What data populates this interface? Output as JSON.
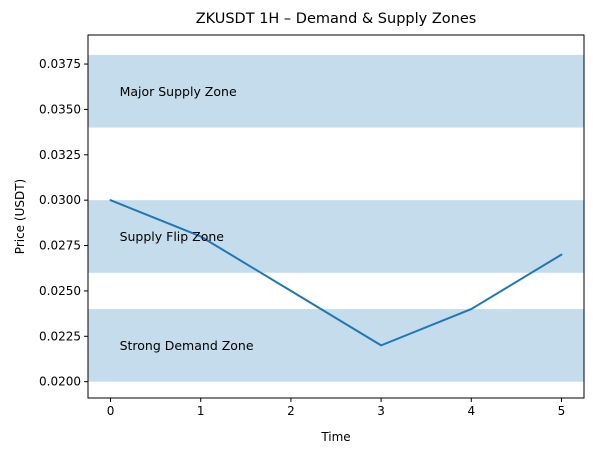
{
  "chart_data": {
    "type": "line",
    "title": "ZKUSDT 1H – Demand & Supply Zones",
    "xlabel": "Time",
    "ylabel": "Price (USDT)",
    "xlim": [
      -0.25,
      5.25
    ],
    "ylim": [
      0.0191,
      0.0391
    ],
    "x_ticks": [
      0,
      1,
      2,
      3,
      4,
      5
    ],
    "x_tick_labels": [
      "0",
      "1",
      "2",
      "3",
      "4",
      "5"
    ],
    "y_ticks": [
      0.02,
      0.0225,
      0.025,
      0.0275,
      0.03,
      0.0325,
      0.035,
      0.0375
    ],
    "y_tick_labels": [
      "0.0200",
      "0.0225",
      "0.0250",
      "0.0275",
      "0.0300",
      "0.0325",
      "0.0350",
      "0.0375"
    ],
    "grid": false,
    "legend": "none",
    "series": [
      {
        "x": [
          0,
          1,
          2,
          3,
          4,
          5
        ],
        "values": [
          0.03,
          0.028,
          0.025,
          0.022,
          0.024,
          0.027
        ],
        "color": "#1f77b4"
      }
    ],
    "zones": [
      {
        "label": "Major Supply Zone",
        "y_low": 0.034,
        "y_high": 0.038,
        "label_x": 0.1,
        "label_y": 0.036
      },
      {
        "label": "Supply Flip Zone",
        "y_low": 0.026,
        "y_high": 0.03,
        "label_x": 0.1,
        "label_y": 0.028
      },
      {
        "label": "Strong Demand Zone",
        "y_low": 0.02,
        "y_high": 0.024,
        "label_x": 0.1,
        "label_y": 0.022
      }
    ],
    "zone_color": "#c4dcec"
  }
}
